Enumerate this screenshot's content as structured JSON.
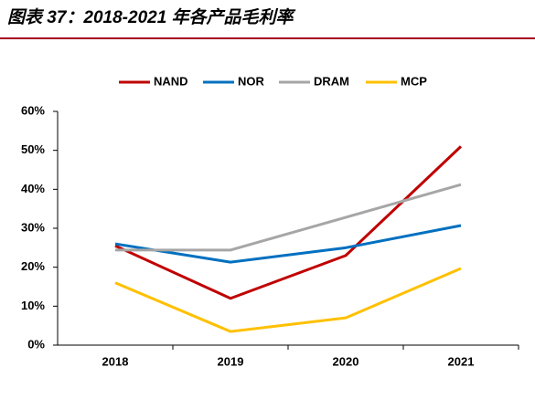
{
  "chart_data": {
    "type": "line",
    "title": "图表 37：2018-2021 年各产品毛利率",
    "categories": [
      "2018",
      "2019",
      "2020",
      "2021"
    ],
    "series": [
      {
        "name": "NAND",
        "color": "#c00000",
        "values": [
          25.5,
          12,
          23,
          51
        ]
      },
      {
        "name": "NOR",
        "color": "#0070c0",
        "values": [
          26,
          21.3,
          25,
          30.7
        ]
      },
      {
        "name": "DRAM",
        "color": "#a6a6a6",
        "values": [
          24.4,
          24.4,
          32.8,
          41.2
        ]
      },
      {
        "name": "MCP",
        "color": "#ffc000",
        "values": [
          16,
          3.5,
          7,
          19.7
        ]
      }
    ],
    "ylim": [
      0,
      60
    ],
    "yticks": [
      {
        "value": 0,
        "label": "0%"
      },
      {
        "value": 10,
        "label": "10%"
      },
      {
        "value": 20,
        "label": "20%"
      },
      {
        "value": 30,
        "label": "30%"
      },
      {
        "value": 40,
        "label": "40%"
      },
      {
        "value": 50,
        "label": "50%"
      },
      {
        "value": 60,
        "label": "60%"
      }
    ],
    "legend": "top"
  }
}
